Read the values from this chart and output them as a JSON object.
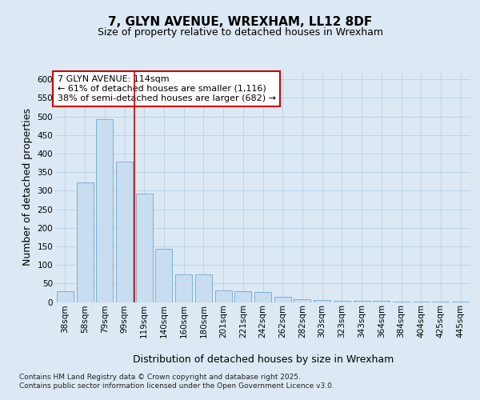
{
  "title1": "7, GLYN AVENUE, WREXHAM, LL12 8DF",
  "title2": "Size of property relative to detached houses in Wrexham",
  "xlabel": "Distribution of detached houses by size in Wrexham",
  "ylabel": "Number of detached properties",
  "categories": [
    "38sqm",
    "58sqm",
    "79sqm",
    "99sqm",
    "119sqm",
    "140sqm",
    "160sqm",
    "180sqm",
    "201sqm",
    "221sqm",
    "242sqm",
    "262sqm",
    "282sqm",
    "303sqm",
    "323sqm",
    "343sqm",
    "364sqm",
    "384sqm",
    "404sqm",
    "425sqm",
    "445sqm"
  ],
  "values": [
    30,
    323,
    493,
    378,
    293,
    143,
    75,
    75,
    32,
    30,
    28,
    14,
    8,
    5,
    4,
    3,
    3,
    2,
    1,
    1,
    1
  ],
  "bar_color": "#c9ddf0",
  "bar_edge_color": "#7bafd4",
  "annotation_line1": "7 GLYN AVENUE: 114sqm",
  "annotation_line2": "← 61% of detached houses are smaller (1,116)",
  "annotation_line3": "38% of semi-detached houses are larger (682) →",
  "annotation_box_facecolor": "#ffffff",
  "annotation_box_edgecolor": "#cc0000",
  "vline_x": 4.0,
  "vline_color": "#cc0000",
  "grid_color": "#b8cfe8",
  "background_color": "#dce9f5",
  "ylim": [
    0,
    620
  ],
  "yticks": [
    0,
    50,
    100,
    150,
    200,
    250,
    300,
    350,
    400,
    450,
    500,
    550,
    600
  ],
  "footer": "Contains HM Land Registry data © Crown copyright and database right 2025.\nContains public sector information licensed under the Open Government Licence v3.0.",
  "title1_fontsize": 11,
  "title2_fontsize": 9,
  "tick_fontsize": 7.5,
  "label_fontsize": 9,
  "annotation_fontsize": 8,
  "footer_fontsize": 6.5
}
